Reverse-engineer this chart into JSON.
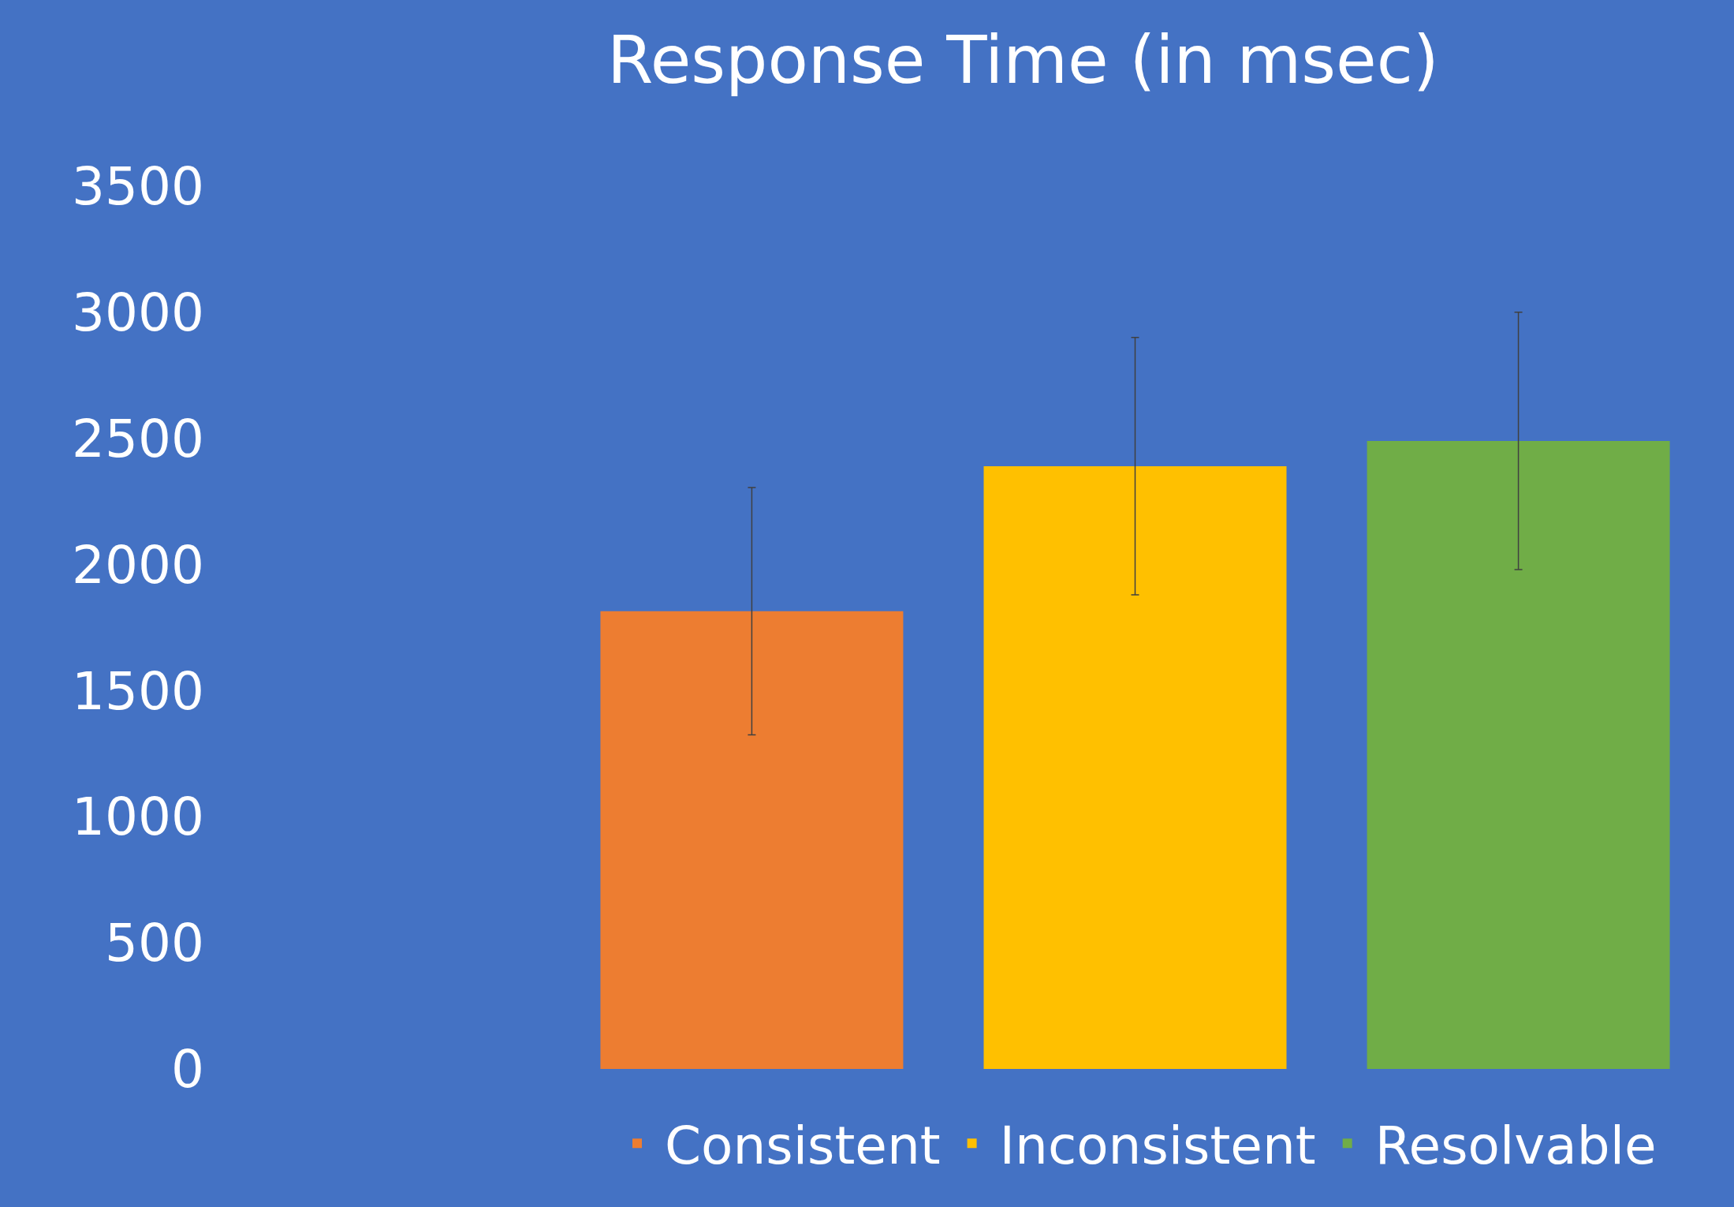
{
  "chart_data": {
    "type": "bar",
    "title": "Response Time (in msec)",
    "categories": [
      null
    ],
    "series": [
      {
        "name": "Consistent",
        "color": "#ed7d31",
        "values": [
          1815
        ],
        "errors": [
          490
        ]
      },
      {
        "name": "Inconsistent",
        "color": "#ffc000",
        "values": [
          2390
        ],
        "errors": [
          510
        ]
      },
      {
        "name": "Resolvable",
        "color": "#70ad47",
        "values": [
          2490
        ],
        "errors": [
          510
        ]
      }
    ],
    "ylim": [
      0,
      3500
    ],
    "yticks": [
      0,
      500,
      1000,
      1500,
      2000,
      2500,
      3000,
      3500
    ],
    "grid": false,
    "legend": "bottom"
  }
}
